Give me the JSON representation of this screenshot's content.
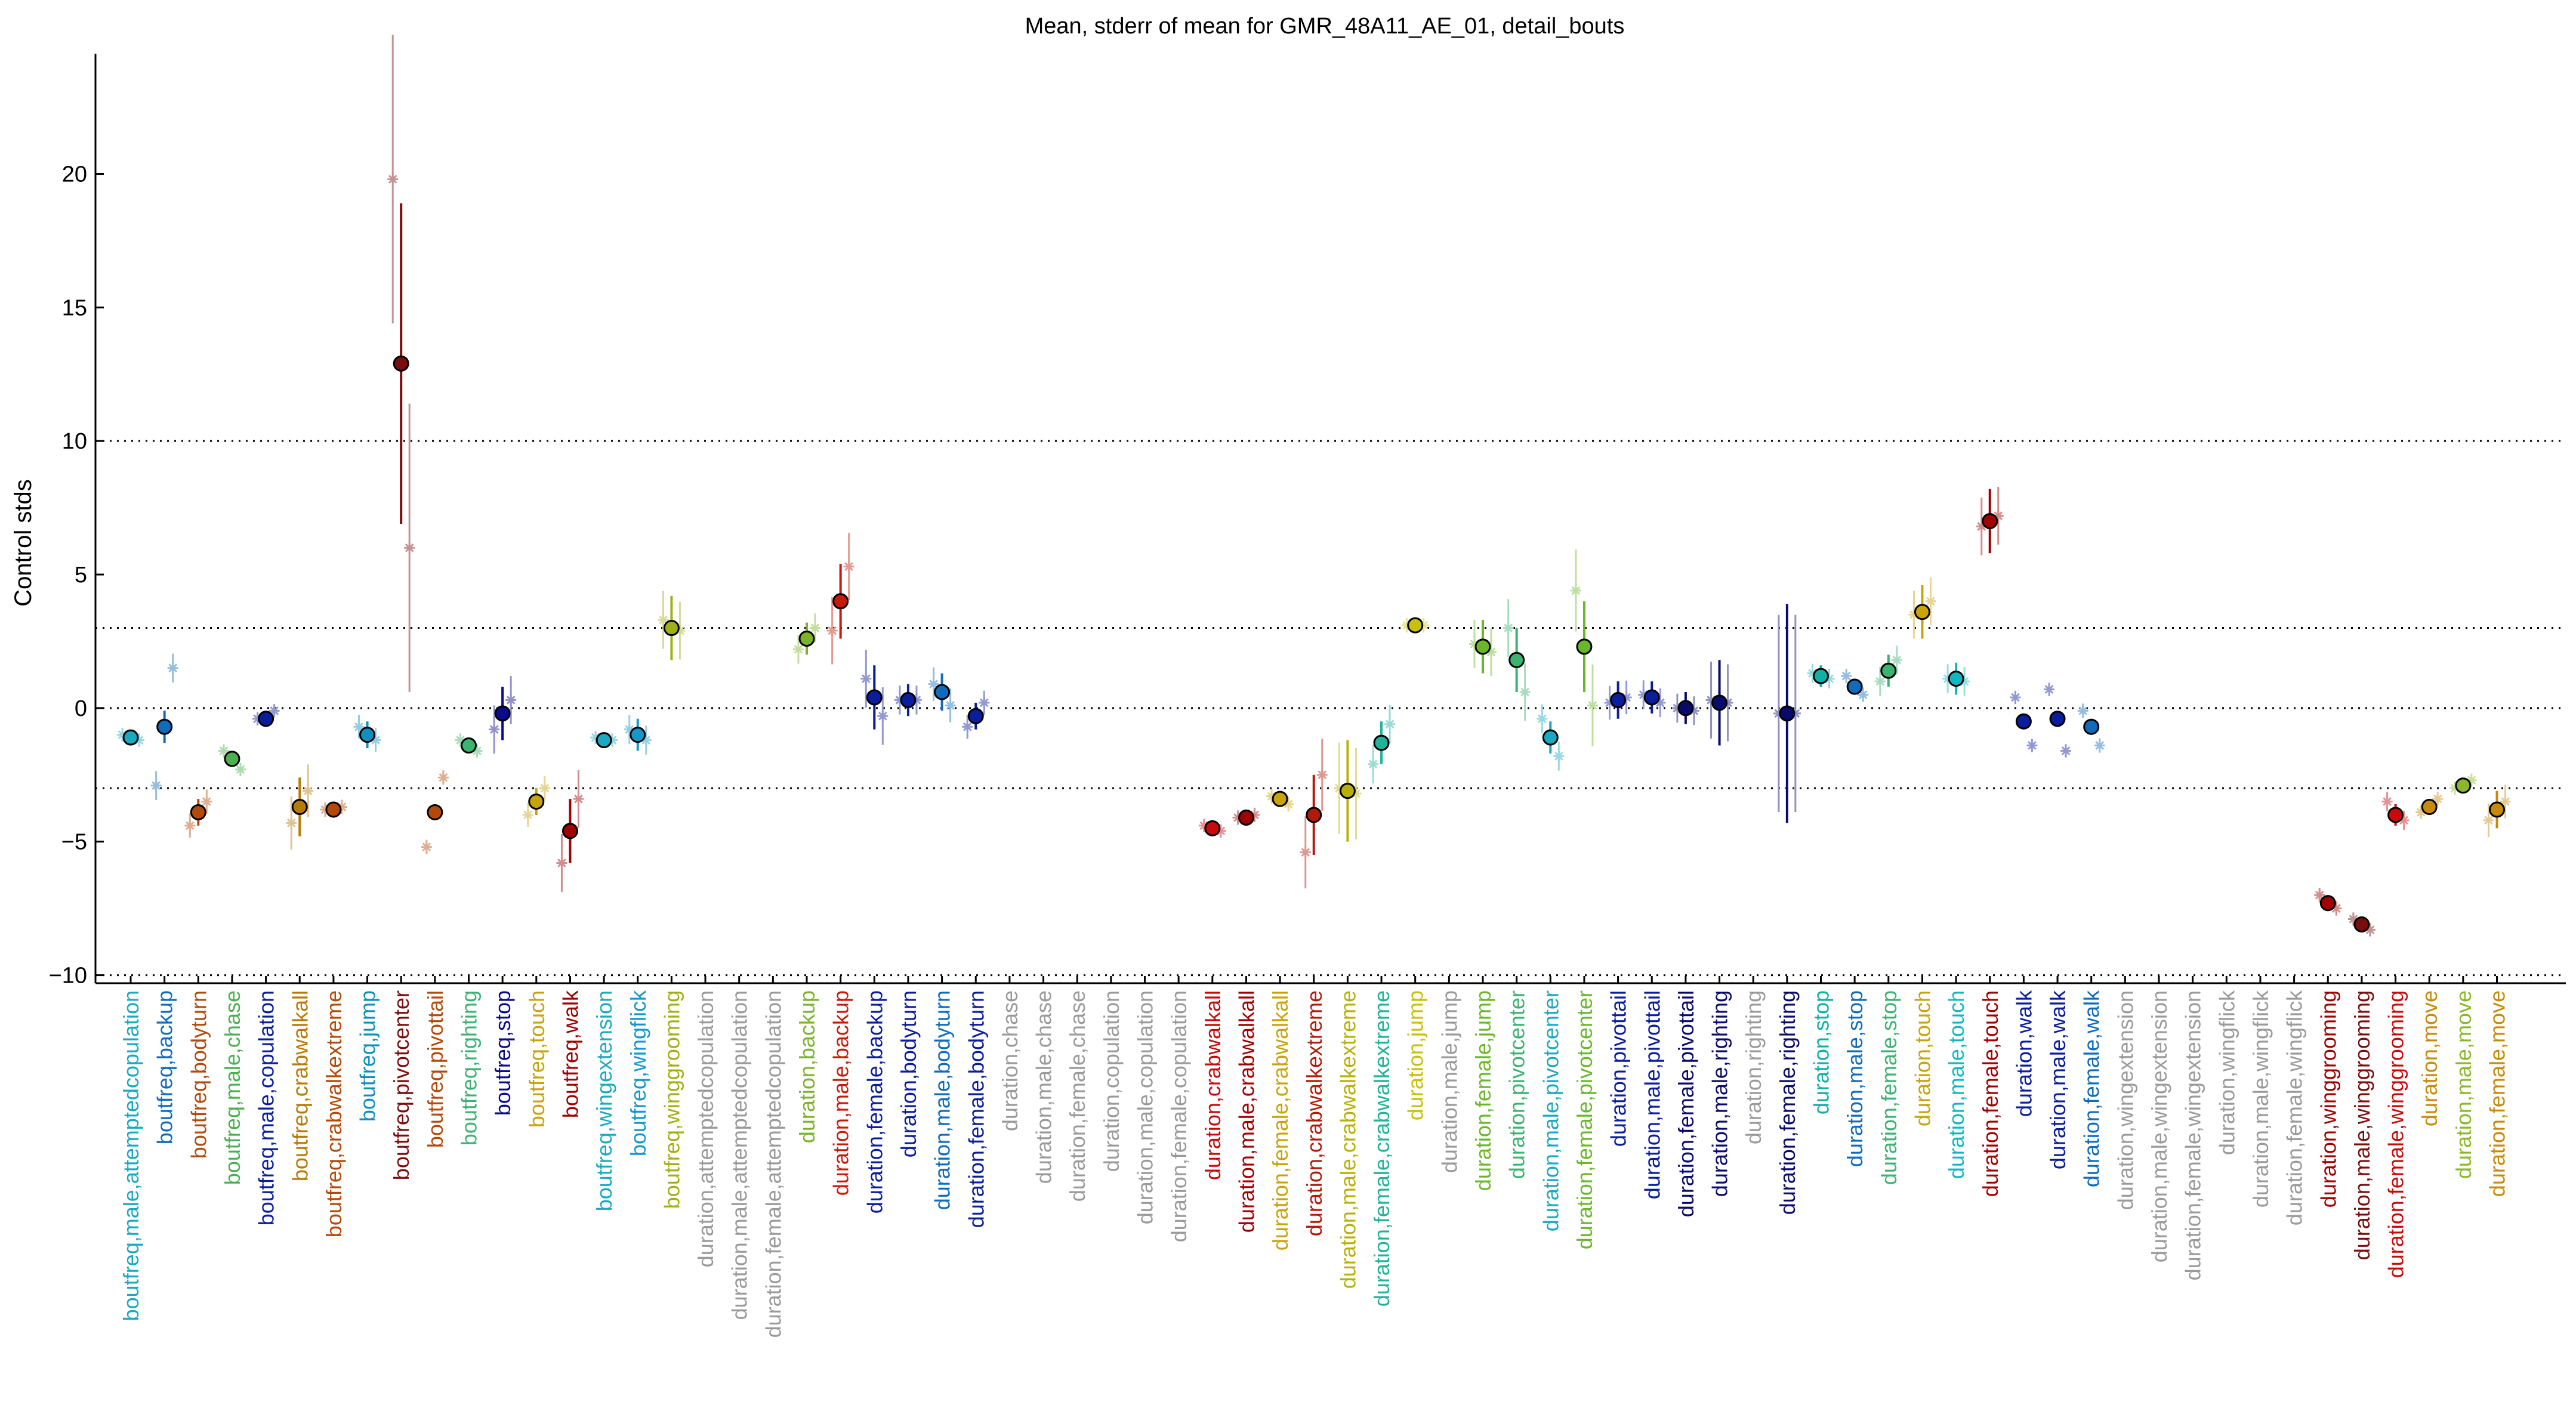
{
  "chart_data": {
    "type": "scatter",
    "title": "Mean, stderr of mean for GMR_48A11_AE_01, detail_bouts",
    "xlabel": "",
    "ylabel": "Control stds",
    "ylim": [
      -10.3,
      24.5
    ],
    "yticks": [
      -10,
      -5,
      0,
      5,
      10,
      15,
      20
    ],
    "ytick_labels": [
      "−10",
      "−5",
      "0",
      "5",
      "10",
      "15",
      "20"
    ],
    "reference_lines": [
      -10,
      -3,
      0,
      3,
      10
    ],
    "grid": false,
    "legend": "none",
    "categories": [
      {
        "label": "boutfreq,male,attemptedcopulation",
        "color": "#1aa9c0",
        "mean": -1.1,
        "err": 0.25,
        "sub": [
          -1.0,
          -1.2
        ]
      },
      {
        "label": "boutfreq,backup",
        "color": "#0f6cbd",
        "mean": -0.7,
        "err": 0.6,
        "sub": [
          -2.9,
          1.5
        ]
      },
      {
        "label": "boutfreq,bodyturn",
        "color": "#b34a0c",
        "mean": -3.9,
        "err": 0.5,
        "sub": [
          -4.4,
          -3.5
        ]
      },
      {
        "label": "boutfreq,male,chase",
        "color": "#4caf50",
        "mean": -1.9,
        "err": 0.25,
        "sub": [
          -1.6,
          -2.3
        ]
      },
      {
        "label": "boutfreq,male,copulation",
        "color": "#0a1d9c",
        "mean": -0.4,
        "err": 0.15,
        "sub": [
          -0.4,
          -0.1
        ]
      },
      {
        "label": "boutfreq,crabwalkall",
        "color": "#b87a06",
        "mean": -3.7,
        "err": 1.1,
        "sub": [
          -4.3,
          -3.1
        ]
      },
      {
        "label": "boutfreq,crabwalkextreme",
        "color": "#b34a0c",
        "mean": -3.8,
        "err": 0.3,
        "sub": [
          -3.8,
          -3.7
        ]
      },
      {
        "label": "boutfreq,jump",
        "color": "#0f8fbd",
        "mean": -1.0,
        "err": 0.5,
        "sub": [
          -0.7,
          -1.2
        ]
      },
      {
        "label": "boutfreq,pivotcenter",
        "color": "#7a0d0d",
        "mean": 12.9,
        "err": 6.0,
        "sub": [
          19.8,
          6.0
        ]
      },
      {
        "label": "boutfreq,pivottail",
        "color": "#b34a0c",
        "mean": -3.9,
        "err": 0.3,
        "sub": [
          -5.2,
          -2.6
        ]
      },
      {
        "label": "boutfreq,righting",
        "color": "#3cb371",
        "mean": -1.4,
        "err": 0.2,
        "sub": [
          -1.2,
          -1.6
        ]
      },
      {
        "label": "boutfreq,stop",
        "color": "#0a0a8c",
        "mean": -0.2,
        "err": 1.0,
        "sub": [
          -0.8,
          0.3
        ]
      },
      {
        "label": "boutfreq,touch",
        "color": "#c8a30a",
        "mean": -3.5,
        "err": 0.5,
        "sub": [
          -4.0,
          -3.0
        ]
      },
      {
        "label": "boutfreq,walk",
        "color": "#a00000",
        "mean": -4.6,
        "err": 1.2,
        "sub": [
          -5.8,
          -3.4
        ]
      },
      {
        "label": "boutfreq,wingextension",
        "color": "#1aa9c0",
        "mean": -1.2,
        "err": 0.2,
        "sub": [
          -1.1,
          -1.2
        ]
      },
      {
        "label": "boutfreq,wingflick",
        "color": "#1597c9",
        "mean": -1.0,
        "err": 0.6,
        "sub": [
          -0.8,
          -1.2
        ]
      },
      {
        "label": "boutfreq,winggrooming",
        "color": "#a0b014",
        "mean": 3.0,
        "err": 1.2,
        "sub": [
          3.3,
          2.9
        ]
      },
      {
        "label": "duration,attemptedcopulation",
        "color": "#9a9a9a"
      },
      {
        "label": "duration,male,attemptedcopulation",
        "color": "#9a9a9a"
      },
      {
        "label": "duration,female,attemptedcopulation",
        "color": "#9a9a9a"
      },
      {
        "label": "duration,backup",
        "color": "#7cb32a",
        "mean": 2.6,
        "err": 0.6,
        "sub": [
          2.2,
          3.0
        ]
      },
      {
        "label": "duration,male,backup",
        "color": "#c81a0a",
        "mean": 4.0,
        "err": 1.4,
        "sub": [
          2.9,
          5.3
        ]
      },
      {
        "label": "duration,female,backup",
        "color": "#0a1d9c",
        "mean": 0.4,
        "err": 1.2,
        "sub": [
          1.1,
          -0.3
        ]
      },
      {
        "label": "duration,bodyturn",
        "color": "#0a1d9c",
        "mean": 0.3,
        "err": 0.6,
        "sub": [
          0.3,
          0.3
        ]
      },
      {
        "label": "duration,male,bodyturn",
        "color": "#0f6cbd",
        "mean": 0.6,
        "err": 0.7,
        "sub": [
          0.9,
          0.1
        ]
      },
      {
        "label": "duration,female,bodyturn",
        "color": "#0a1d9c",
        "mean": -0.3,
        "err": 0.5,
        "sub": [
          -0.7,
          0.2
        ]
      },
      {
        "label": "duration,chase",
        "color": "#9a9a9a"
      },
      {
        "label": "duration,male,chase",
        "color": "#9a9a9a"
      },
      {
        "label": "duration,female,chase",
        "color": "#9a9a9a"
      },
      {
        "label": "duration,copulation",
        "color": "#9a9a9a"
      },
      {
        "label": "duration,male,copulation",
        "color": "#9a9a9a"
      },
      {
        "label": "duration,female,copulation",
        "color": "#9a9a9a"
      },
      {
        "label": "duration,crabwalkall",
        "color": "#c80a0a",
        "mean": -4.5,
        "err": 0.2,
        "sub": [
          -4.4,
          -4.6
        ]
      },
      {
        "label": "duration,male,crabwalkall",
        "color": "#a00000",
        "mean": -4.1,
        "err": 0.3,
        "sub": [
          -4.1,
          -4.0
        ]
      },
      {
        "label": "duration,female,crabwalkall",
        "color": "#c8a30a",
        "mean": -3.4,
        "err": 0.3,
        "sub": [
          -3.3,
          -3.6
        ]
      },
      {
        "label": "duration,crabwalkextreme",
        "color": "#b01a0a",
        "mean": -4.0,
        "err": 1.5,
        "sub": [
          -5.4,
          -2.5
        ]
      },
      {
        "label": "duration,male,crabwalkextreme",
        "color": "#b8b00a",
        "mean": -3.1,
        "err": 1.9,
        "sub": [
          -3.0,
          -3.2
        ]
      },
      {
        "label": "duration,female,crabwalkextreme",
        "color": "#20b29a",
        "mean": -1.3,
        "err": 0.8,
        "sub": [
          -2.1,
          -0.6
        ]
      },
      {
        "label": "duration,jump",
        "color": "#c8c00a",
        "mean": 3.1,
        "err": 0.3,
        "sub": [
          3.1,
          3.1
        ]
      },
      {
        "label": "duration,male,jump",
        "color": "#9a9a9a"
      },
      {
        "label": "duration,female,jump",
        "color": "#6ab82a",
        "mean": 2.3,
        "err": 1.0,
        "sub": [
          2.4,
          2.1
        ]
      },
      {
        "label": "duration,pivotcenter",
        "color": "#3cb371",
        "mean": 1.8,
        "err": 1.2,
        "sub": [
          3.0,
          0.6
        ]
      },
      {
        "label": "duration,male,pivotcenter",
        "color": "#1aa9c0",
        "mean": -1.1,
        "err": 0.6,
        "sub": [
          -0.4,
          -1.8
        ]
      },
      {
        "label": "duration,female,pivotcenter",
        "color": "#6ab82a",
        "mean": 2.3,
        "err": 1.7,
        "sub": [
          4.4,
          0.1
        ]
      },
      {
        "label": "duration,pivottail",
        "color": "#0a1d9c",
        "mean": 0.3,
        "err": 0.7,
        "sub": [
          0.2,
          0.4
        ]
      },
      {
        "label": "duration,male,pivottail",
        "color": "#0a1d9c",
        "mean": 0.4,
        "err": 0.6,
        "sub": [
          0.5,
          0.2
        ]
      },
      {
        "label": "duration,female,pivottail",
        "color": "#0a0a6c",
        "mean": 0.0,
        "err": 0.6,
        "sub": [
          0.0,
          -0.1
        ]
      },
      {
        "label": "duration,male,righting",
        "color": "#0a0a6c",
        "mean": 0.2,
        "err": 1.6,
        "sub": [
          0.3,
          0.2
        ]
      },
      {
        "label": "duration,righting",
        "color": "#9a9a9a"
      },
      {
        "label": "duration,female,righting",
        "color": "#0a0a6c",
        "mean": -0.2,
        "err": 4.1,
        "sub": [
          -0.2,
          -0.2
        ]
      },
      {
        "label": "duration,stop",
        "color": "#0fb0a8",
        "mean": 1.2,
        "err": 0.4,
        "sub": [
          1.3,
          1.1
        ]
      },
      {
        "label": "duration,male,stop",
        "color": "#0f6cbd",
        "mean": 0.8,
        "err": 0.3,
        "sub": [
          1.2,
          0.5
        ]
      },
      {
        "label": "duration,female,stop",
        "color": "#3cb371",
        "mean": 1.4,
        "err": 0.6,
        "sub": [
          1.0,
          1.8
        ]
      },
      {
        "label": "duration,touch",
        "color": "#c8a30a",
        "mean": 3.6,
        "err": 1.0,
        "sub": [
          3.5,
          4.0
        ]
      },
      {
        "label": "duration,male,touch",
        "color": "#0fb8c0",
        "mean": 1.1,
        "err": 0.6,
        "sub": [
          1.1,
          1.0
        ]
      },
      {
        "label": "duration,female,touch",
        "color": "#a00000",
        "mean": 7.0,
        "err": 1.2,
        "sub": [
          6.8,
          7.2
        ]
      },
      {
        "label": "duration,walk",
        "color": "#0a1d9c",
        "mean": -0.5,
        "err": 0.15,
        "sub": [
          0.4,
          -1.4
        ]
      },
      {
        "label": "duration,male,walk",
        "color": "#0a1d9c",
        "mean": -0.4,
        "err": 0.2,
        "sub": [
          0.7,
          -1.6
        ]
      },
      {
        "label": "duration,female,walk",
        "color": "#0f6cbd",
        "mean": -0.7,
        "err": 0.3,
        "sub": [
          -0.1,
          -1.4
        ]
      },
      {
        "label": "duration,wingextension",
        "color": "#9a9a9a"
      },
      {
        "label": "duration,male,wingextension",
        "color": "#9a9a9a"
      },
      {
        "label": "duration,female,wingextension",
        "color": "#9a9a9a"
      },
      {
        "label": "duration,wingflick",
        "color": "#9a9a9a"
      },
      {
        "label": "duration,male,wingflick",
        "color": "#9a9a9a"
      },
      {
        "label": "duration,female,wingflick",
        "color": "#9a9a9a"
      },
      {
        "label": "duration,winggrooming",
        "color": "#a00000",
        "mean": -7.3,
        "err": 0.3,
        "sub": [
          -7.0,
          -7.5
        ]
      },
      {
        "label": "duration,male,winggrooming",
        "color": "#7a0d0d",
        "mean": -8.1,
        "err": 0.2,
        "sub": [
          -7.9,
          -8.3
        ]
      },
      {
        "label": "duration,female,winggrooming",
        "color": "#c80a0a",
        "mean": -4.0,
        "err": 0.4,
        "sub": [
          -3.5,
          -4.2
        ]
      },
      {
        "label": "duration,move",
        "color": "#c88a0a",
        "mean": -3.7,
        "err": 0.2,
        "sub": [
          -3.9,
          -3.4
        ]
      },
      {
        "label": "duration,male,move",
        "color": "#8ab82a",
        "mean": -2.9,
        "err": 0.2,
        "sub": [
          -3.0,
          -2.7
        ]
      },
      {
        "label": "duration,female,move",
        "color": "#c88a0a",
        "mean": -3.8,
        "err": 0.7,
        "sub": [
          -4.2,
          -3.5
        ]
      }
    ]
  }
}
